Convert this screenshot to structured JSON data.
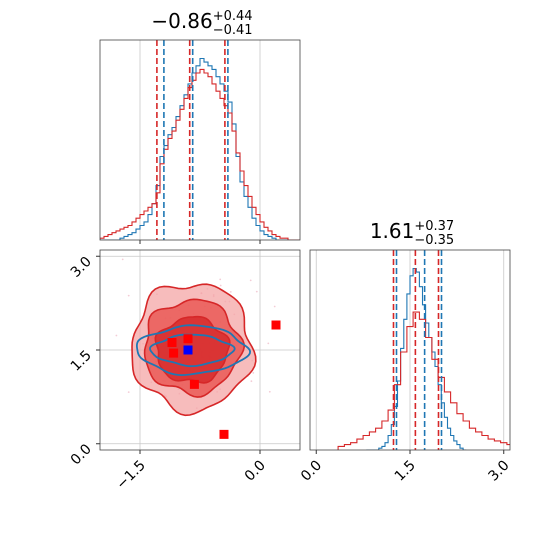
{
  "chart_data": {
    "type": "corner",
    "colors": {
      "red": "#d62728",
      "blue": "#1f77b4",
      "light_red": "#f4a6a6",
      "mid_red": "#e8534f",
      "marker_red": "#ff0000",
      "marker_blue": "#0000ff",
      "grid": "#c8c8c8"
    },
    "panels": [
      {
        "id": "hist-param-1",
        "title": {
          "main": "−0.86",
          "sup": "+0.44",
          "sub": "−0.41"
        },
        "xlim": [
          -2.0,
          0.5
        ],
        "grid_x": [
          -1.5,
          0.0
        ],
        "quantiles": {
          "red": [
            -1.27,
            -0.86,
            -0.42
          ],
          "blue": [
            -1.22,
            -0.86,
            -0.42
          ]
        },
        "series": [
          {
            "name": "",
            "color": "blue",
            "bins": {
              "start": -2.0,
              "width": 0.05,
              "counts": [
                0,
                0,
                0,
                0,
                0,
                1,
                2,
                3,
                4,
                6,
                8,
                10,
                14,
                20,
                30,
                46,
                52,
                58,
                62,
                68,
                74,
                80,
                86,
                92,
                96,
                100,
                98,
                96,
                94,
                90,
                86,
                82,
                76,
                64,
                46,
                32,
                24,
                18,
                12,
                8,
                5,
                3,
                2,
                1,
                0,
                0,
                0,
                0,
                0,
                0
              ]
            }
          },
          {
            "name": "",
            "color": "red",
            "bins": {
              "start": -2.0,
              "width": 0.05,
              "counts": [
                1,
                2,
                3,
                4,
                5,
                6,
                7,
                8,
                10,
                12,
                14,
                16,
                18,
                20,
                26,
                42,
                50,
                56,
                60,
                66,
                72,
                78,
                84,
                88,
                92,
                94,
                92,
                90,
                86,
                82,
                78,
                74,
                70,
                60,
                48,
                38,
                30,
                24,
                18,
                14,
                10,
                7,
                5,
                3,
                2,
                1,
                1,
                0,
                0,
                0
              ]
            }
          }
        ]
      },
      {
        "id": "hist-param-2",
        "title": {
          "main": "1.61",
          "sup": "+0.37",
          "sub": "−0.35"
        },
        "xlim": [
          -0.1,
          3.1
        ],
        "ticks": [
          0.0,
          1.5,
          3.0
        ],
        "tick_labels": [
          "0.0",
          "1.5",
          "3.0"
        ],
        "grid_x": [
          0.0,
          1.5,
          3.0
        ],
        "quantiles": {
          "red": [
            1.26,
            1.61,
            1.98
          ],
          "blue": [
            1.26,
            1.71,
            1.98
          ]
        },
        "series": [
          {
            "name": "",
            "color": "blue",
            "bins": {
              "start": 0.8,
              "width": 0.05,
              "counts": [
                0,
                0,
                0,
                0,
                1,
                2,
                4,
                8,
                14,
                24,
                38,
                56,
                72,
                86,
                96,
                100,
                98,
                90,
                80,
                70,
                62,
                54,
                46,
                36,
                26,
                18,
                12,
                8,
                5,
                3,
                1,
                0
              ]
            }
          },
          {
            "name": "",
            "color": "red",
            "bins": {
              "start": 0.35,
              "width": 0.1,
              "counts": [
                2,
                3,
                4,
                6,
                8,
                10,
                12,
                16,
                22,
                36,
                54,
                68,
                76,
                72,
                62,
                50,
                40,
                32,
                26,
                20,
                16,
                12,
                10,
                8,
                6,
                5,
                4,
                3,
                2,
                1
              ]
            }
          }
        ]
      },
      {
        "id": "scatter-2d",
        "type": "contour",
        "xlim": [
          -2.0,
          0.5
        ],
        "ylim": [
          -0.1,
          3.1
        ],
        "xticks": [
          -1.5,
          0.0
        ],
        "xtick_labels": [
          "−1.5",
          "0.0"
        ],
        "yticks": [
          0.0,
          1.5,
          3.0
        ],
        "ytick_labels": [
          "0.0",
          "1.5",
          "3.0"
        ],
        "grid_x": [
          -1.5,
          0.0
        ],
        "grid_y": [
          0.0,
          1.5,
          3.0
        ],
        "red_contours": [
          {
            "level": "outer",
            "cx": -0.85,
            "cy": 1.55,
            "rx": 0.75,
            "ry": 1.02
          },
          {
            "level": "middle",
            "cx": -0.85,
            "cy": 1.55,
            "rx": 0.6,
            "ry": 0.75
          },
          {
            "level": "inner",
            "cx": -0.85,
            "cy": 1.5,
            "rx": 0.45,
            "ry": 0.52
          }
        ],
        "blue_contours": [
          {
            "level": "outer",
            "cx": -0.85,
            "cy": 1.5,
            "rx": 0.68,
            "ry": 0.38
          },
          {
            "level": "inner",
            "cx": -0.85,
            "cy": 1.5,
            "rx": 0.5,
            "ry": 0.24
          }
        ],
        "red_markers": [
          {
            "x": 0.2,
            "y": 1.9
          },
          {
            "x": -1.1,
            "y": 1.62
          },
          {
            "x": -1.08,
            "y": 1.45
          },
          {
            "x": -0.9,
            "y": 1.68
          },
          {
            "x": -0.82,
            "y": 0.95
          },
          {
            "x": -0.45,
            "y": 0.15
          }
        ],
        "blue_markers": [
          {
            "x": -0.9,
            "y": 1.5
          }
        ]
      }
    ]
  }
}
